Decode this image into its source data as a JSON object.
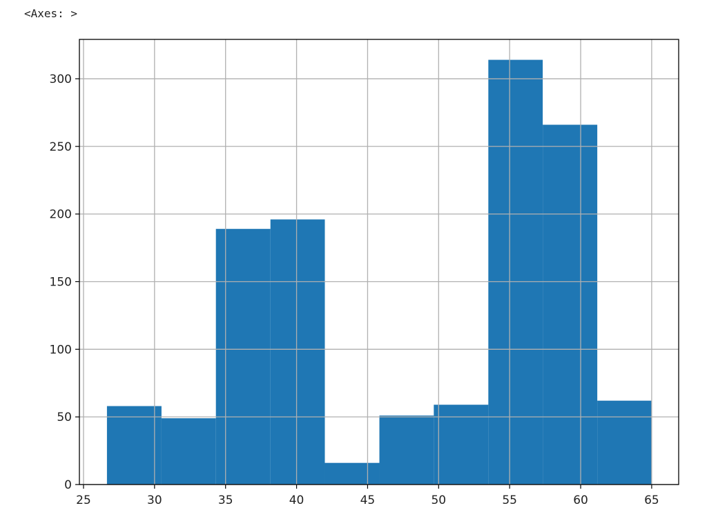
{
  "cell_output": "<Axes: >",
  "chart_data": {
    "type": "histogram",
    "bins": [
      26.65,
      30.49,
      34.32,
      38.16,
      41.99,
      45.83,
      49.66,
      53.5,
      57.33,
      61.17,
      65.0
    ],
    "values": [
      58,
      49,
      189,
      196,
      16,
      51,
      59,
      314,
      266,
      62
    ],
    "color": "#1f77b4",
    "xlim": [
      24.71,
      66.9
    ],
    "xticks": [
      25,
      30,
      35,
      40,
      45,
      50,
      55,
      60,
      65
    ],
    "ylim": [
      0,
      329.1
    ],
    "yticks": [
      0,
      50,
      100,
      150,
      200,
      250,
      300
    ],
    "grid": true
  }
}
